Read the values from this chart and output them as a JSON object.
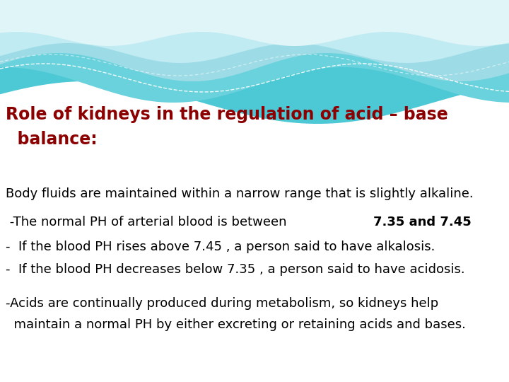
{
  "title_line1": "Role of kidneys in the regulation of acid – base",
  "title_line2": "  balance:",
  "title_color": "#8B0000",
  "title_fontsize": 17,
  "body_fontsize": 13,
  "text_color": "#000000",
  "bg_color": "#FFFFFF",
  "line1": "Body fluids are maintained within a narrow range that is slightly alkaline.",
  "line2_prefix": " -The normal PH of arterial blood is between ",
  "line2_bold": "7.35 and 7.45",
  "line3": "-  If the blood PH rises above 7.45 , a person said to have alkalosis.",
  "line4": "-  If the blood PH decreases below 7.35 , a person said to have acidosis.",
  "line5": "-Acids are continually produced during metabolism, so kidneys help",
  "line6": "  maintain a normal PH by either excreting or retaining acids and bases.",
  "wave_color1": "#4DC8D5",
  "wave_color2": "#6AD2DC",
  "wave_color3": "#9DDCE6",
  "wave_color4": "#C0EBF2",
  "wave_color5": "#E0F5F8",
  "dashed_color": "#AADDDD"
}
